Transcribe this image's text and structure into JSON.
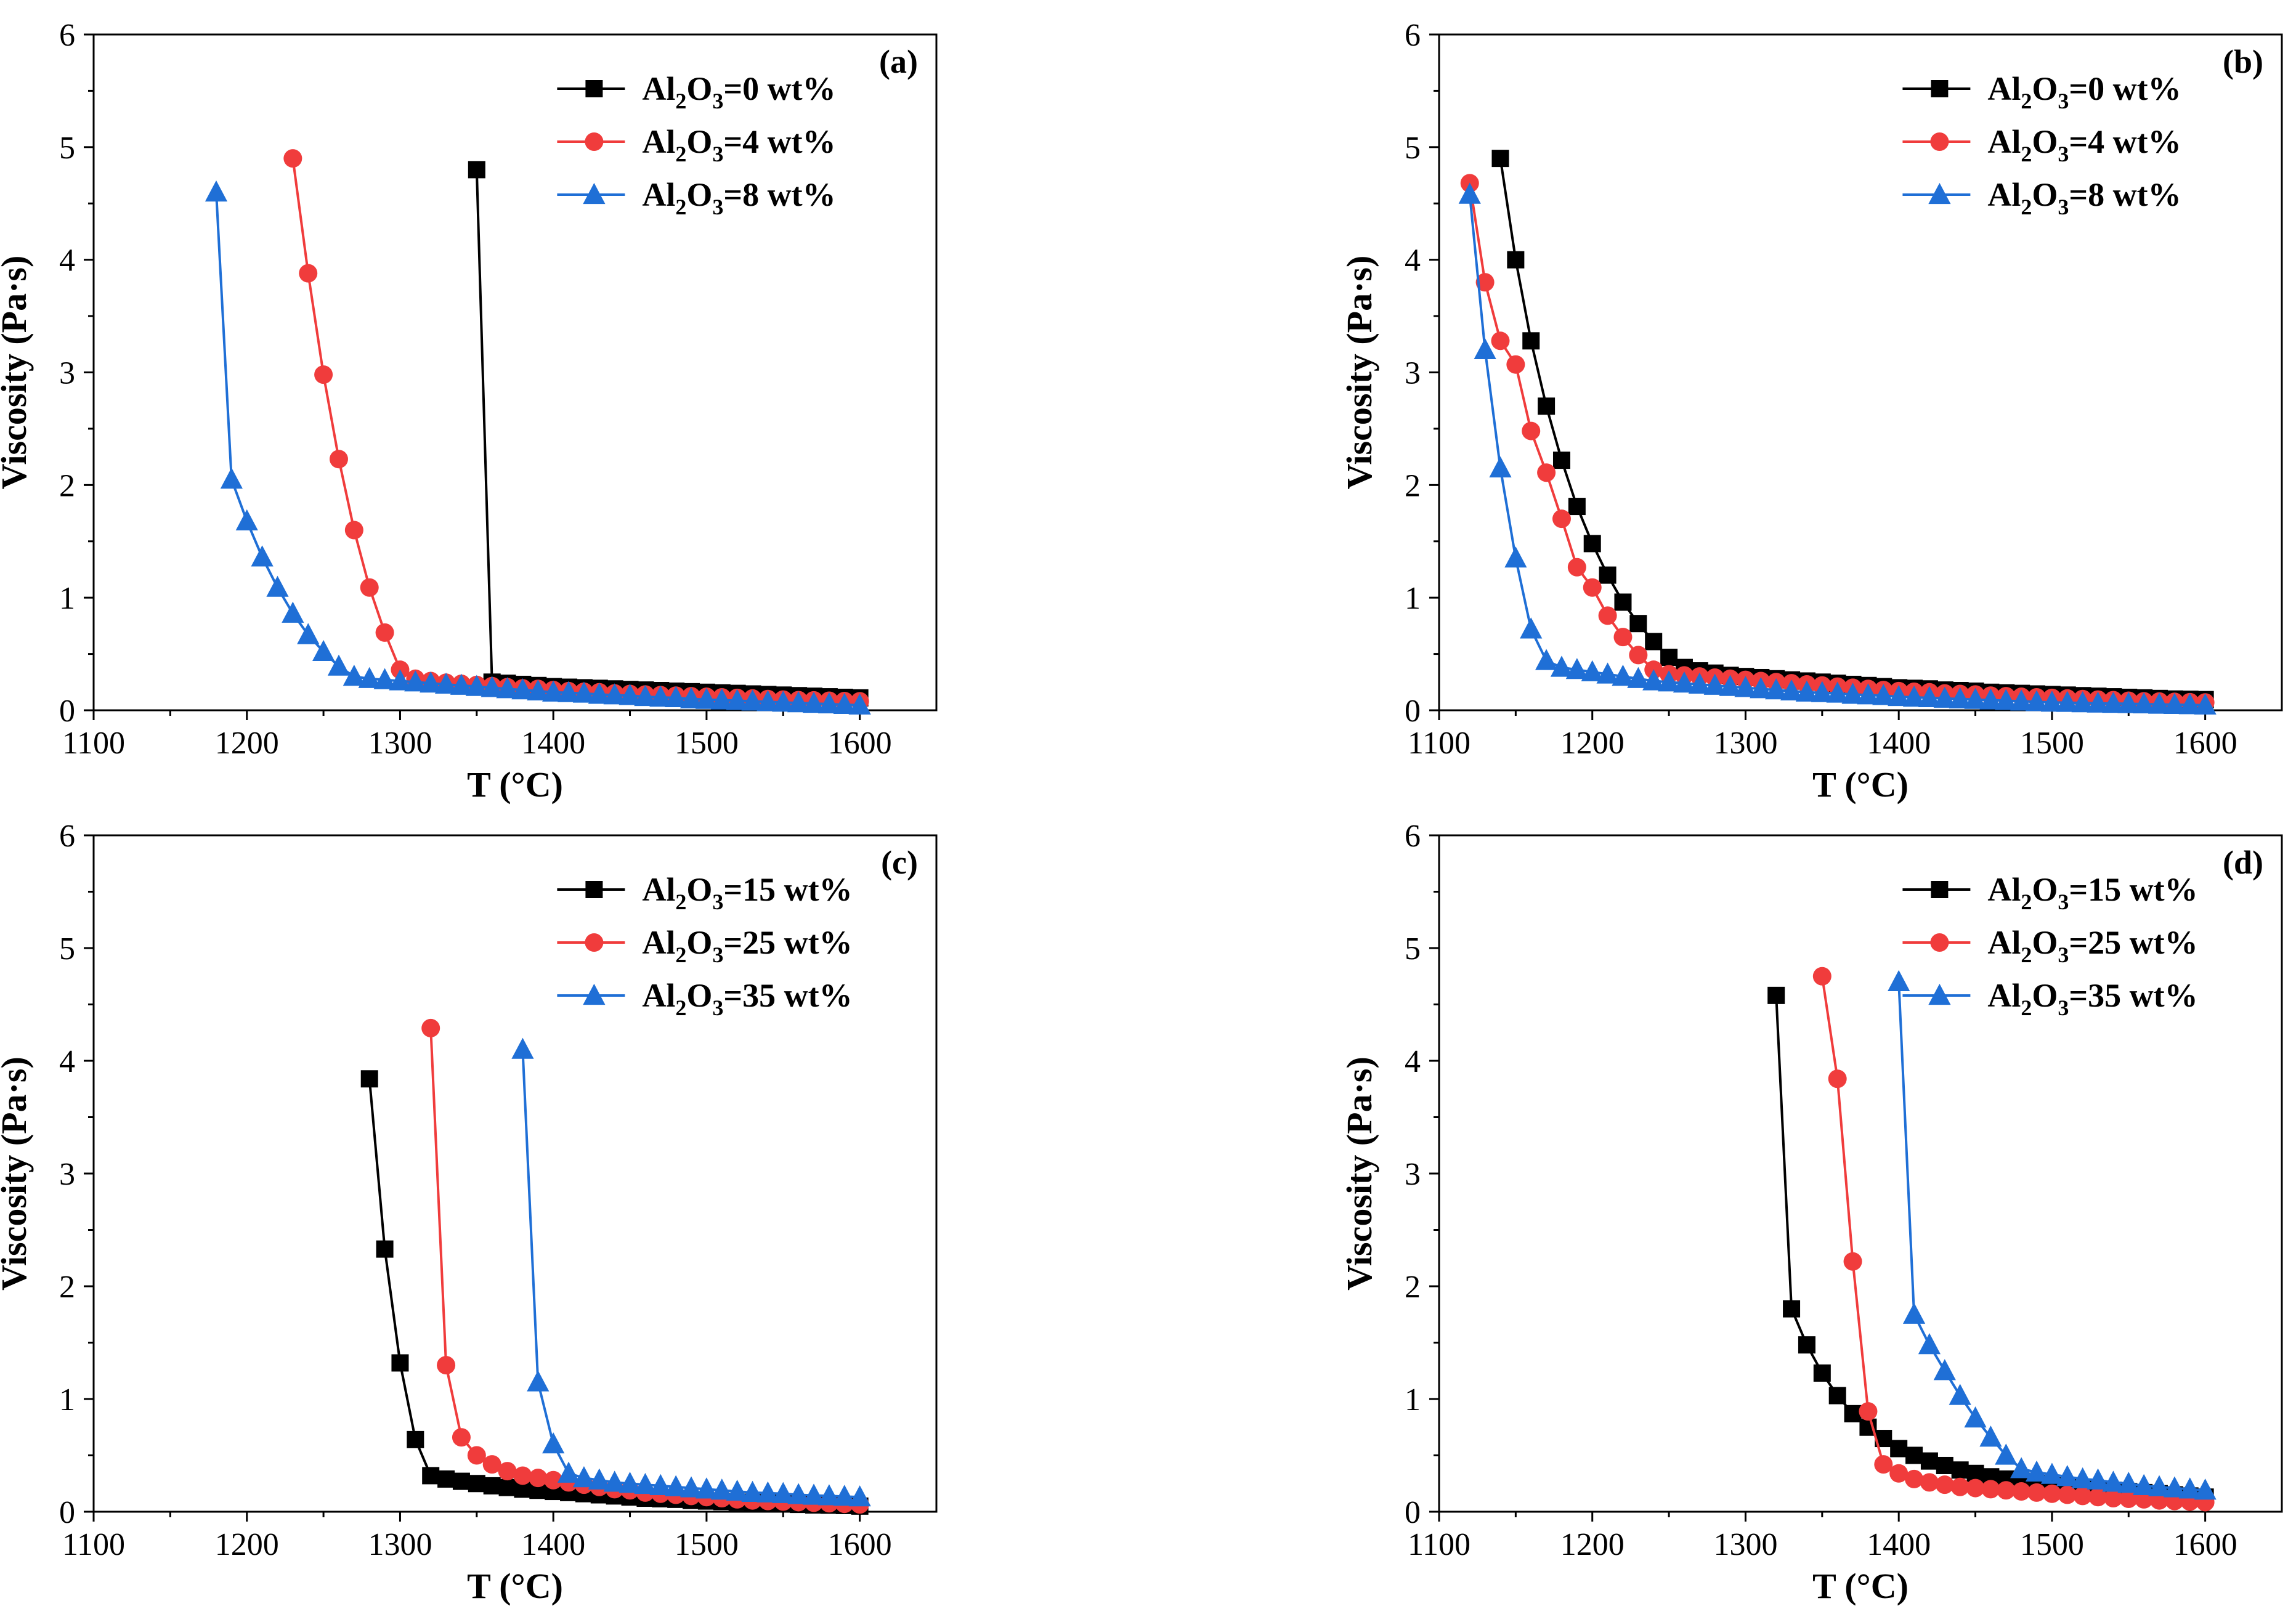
{
  "chart_data": [
    {
      "type": "line",
      "panel_label": "(a)",
      "xlabel": "T (°C)",
      "ylabel": "Viscosity (Pa·s)",
      "xlim": [
        1100,
        1650
      ],
      "ylim": [
        0,
        6
      ],
      "x_ticks": [
        1100,
        1200,
        1300,
        1400,
        1500,
        1600
      ],
      "y_ticks": [
        0,
        1,
        2,
        3,
        4,
        5,
        6
      ],
      "legend_position": "top-right",
      "series": [
        {
          "name": "Al2O3=0 wt%",
          "color": "#000000",
          "marker": "square",
          "x": [
            1350,
            1360,
            1370,
            1380,
            1390,
            1400,
            1410,
            1420,
            1430,
            1440,
            1450,
            1460,
            1470,
            1480,
            1490,
            1500,
            1510,
            1520,
            1530,
            1540,
            1550,
            1560,
            1570,
            1580,
            1590,
            1600
          ],
          "y": [
            4.8,
            0.25,
            0.24,
            0.23,
            0.22,
            0.21,
            0.205,
            0.2,
            0.195,
            0.19,
            0.185,
            0.18,
            0.175,
            0.17,
            0.165,
            0.16,
            0.155,
            0.15,
            0.145,
            0.14,
            0.135,
            0.13,
            0.125,
            0.12,
            0.115,
            0.11
          ]
        },
        {
          "name": "Al2O3=4 wt%",
          "color": "#f03c3c",
          "marker": "circle",
          "x": [
            1230,
            1240,
            1250,
            1260,
            1270,
            1280,
            1290,
            1300,
            1310,
            1320,
            1330,
            1340,
            1350,
            1360,
            1370,
            1380,
            1390,
            1400,
            1410,
            1420,
            1430,
            1440,
            1450,
            1460,
            1470,
            1480,
            1490,
            1500,
            1510,
            1520,
            1530,
            1540,
            1550,
            1560,
            1570,
            1580,
            1590,
            1600
          ],
          "y": [
            4.9,
            3.88,
            2.98,
            2.23,
            1.6,
            1.09,
            0.69,
            0.36,
            0.28,
            0.26,
            0.245,
            0.235,
            0.225,
            0.215,
            0.205,
            0.195,
            0.19,
            0.18,
            0.17,
            0.165,
            0.16,
            0.15,
            0.145,
            0.14,
            0.135,
            0.13,
            0.125,
            0.12,
            0.115,
            0.11,
            0.105,
            0.1,
            0.095,
            0.09,
            0.088,
            0.085,
            0.082,
            0.08
          ]
        },
        {
          "name": "Al2O3=8 wt%",
          "color": "#1f6fd6",
          "marker": "triangle",
          "x": [
            1180,
            1190,
            1200,
            1210,
            1220,
            1230,
            1240,
            1250,
            1260,
            1270,
            1280,
            1290,
            1300,
            1310,
            1320,
            1330,
            1340,
            1350,
            1360,
            1370,
            1380,
            1390,
            1400,
            1410,
            1420,
            1430,
            1440,
            1450,
            1460,
            1470,
            1480,
            1490,
            1500,
            1510,
            1520,
            1530,
            1540,
            1550,
            1560,
            1570,
            1580,
            1590,
            1600
          ],
          "y": [
            4.6,
            2.05,
            1.68,
            1.36,
            1.09,
            0.86,
            0.67,
            0.52,
            0.39,
            0.3,
            0.28,
            0.27,
            0.26,
            0.25,
            0.24,
            0.23,
            0.22,
            0.21,
            0.2,
            0.19,
            0.18,
            0.17,
            0.16,
            0.155,
            0.15,
            0.14,
            0.135,
            0.13,
            0.12,
            0.115,
            0.11,
            0.1,
            0.095,
            0.09,
            0.085,
            0.08,
            0.075,
            0.07,
            0.065,
            0.06,
            0.055,
            0.05,
            0.045
          ]
        }
      ]
    },
    {
      "type": "line",
      "panel_label": "(b)",
      "xlabel": "T (°C)",
      "ylabel": "Viscosity (Pa·s)",
      "xlim": [
        1100,
        1650
      ],
      "ylim": [
        0,
        6
      ],
      "x_ticks": [
        1100,
        1200,
        1300,
        1400,
        1500,
        1600
      ],
      "y_ticks": [
        0,
        1,
        2,
        3,
        4,
        5,
        6
      ],
      "legend_position": "top-right",
      "series": [
        {
          "name": "Al2O3=0 wt%",
          "color": "#000000",
          "marker": "square",
          "x": [
            1140,
            1150,
            1160,
            1170,
            1180,
            1190,
            1200,
            1210,
            1220,
            1230,
            1240,
            1250,
            1260,
            1270,
            1280,
            1290,
            1300,
            1310,
            1320,
            1330,
            1340,
            1350,
            1360,
            1370,
            1380,
            1390,
            1400,
            1410,
            1420,
            1430,
            1440,
            1450,
            1460,
            1470,
            1480,
            1490,
            1500,
            1510,
            1520,
            1530,
            1540,
            1550,
            1560,
            1570,
            1580,
            1590,
            1600
          ],
          "y": [
            4.9,
            4.0,
            3.28,
            2.7,
            2.22,
            1.81,
            1.48,
            1.2,
            0.96,
            0.77,
            0.61,
            0.47,
            0.38,
            0.35,
            0.33,
            0.31,
            0.3,
            0.29,
            0.28,
            0.27,
            0.26,
            0.25,
            0.24,
            0.23,
            0.22,
            0.21,
            0.2,
            0.195,
            0.19,
            0.18,
            0.175,
            0.17,
            0.16,
            0.155,
            0.15,
            0.145,
            0.14,
            0.135,
            0.13,
            0.125,
            0.12,
            0.115,
            0.11,
            0.105,
            0.1,
            0.098,
            0.095
          ]
        },
        {
          "name": "Al2O3=4 wt%",
          "color": "#f03c3c",
          "marker": "circle",
          "x": [
            1120,
            1130,
            1140,
            1150,
            1160,
            1170,
            1180,
            1190,
            1200,
            1210,
            1220,
            1230,
            1240,
            1250,
            1260,
            1270,
            1280,
            1290,
            1300,
            1310,
            1320,
            1330,
            1340,
            1350,
            1360,
            1370,
            1380,
            1390,
            1400,
            1410,
            1420,
            1430,
            1440,
            1450,
            1460,
            1470,
            1480,
            1490,
            1500,
            1510,
            1520,
            1530,
            1540,
            1550,
            1560,
            1570,
            1580,
            1590,
            1600
          ],
          "y": [
            4.68,
            3.8,
            3.28,
            3.07,
            2.48,
            2.11,
            1.7,
            1.27,
            1.09,
            0.84,
            0.65,
            0.49,
            0.36,
            0.32,
            0.31,
            0.3,
            0.29,
            0.28,
            0.27,
            0.26,
            0.25,
            0.24,
            0.23,
            0.22,
            0.21,
            0.2,
            0.19,
            0.18,
            0.17,
            0.165,
            0.16,
            0.15,
            0.145,
            0.14,
            0.13,
            0.125,
            0.12,
            0.115,
            0.11,
            0.105,
            0.1,
            0.095,
            0.09,
            0.085,
            0.08,
            0.078,
            0.075,
            0.072,
            0.07
          ]
        },
        {
          "name": "Al2O3=8 wt%",
          "color": "#1f6fd6",
          "marker": "triangle",
          "x": [
            1120,
            1130,
            1140,
            1150,
            1160,
            1170,
            1180,
            1190,
            1200,
            1210,
            1220,
            1230,
            1240,
            1250,
            1260,
            1270,
            1280,
            1290,
            1300,
            1310,
            1320,
            1330,
            1340,
            1350,
            1360,
            1370,
            1380,
            1390,
            1400,
            1410,
            1420,
            1430,
            1440,
            1450,
            1460,
            1470,
            1480,
            1490,
            1500,
            1510,
            1520,
            1530,
            1540,
            1550,
            1560,
            1570,
            1580,
            1590,
            1600
          ],
          "y": [
            4.58,
            3.2,
            2.15,
            1.35,
            0.72,
            0.44,
            0.38,
            0.36,
            0.34,
            0.32,
            0.3,
            0.28,
            0.26,
            0.25,
            0.24,
            0.23,
            0.22,
            0.21,
            0.2,
            0.19,
            0.18,
            0.17,
            0.16,
            0.155,
            0.15,
            0.14,
            0.135,
            0.13,
            0.12,
            0.115,
            0.11,
            0.105,
            0.1,
            0.095,
            0.09,
            0.085,
            0.08,
            0.075,
            0.07,
            0.068,
            0.065,
            0.062,
            0.06,
            0.058,
            0.055,
            0.052,
            0.05,
            0.048,
            0.045
          ]
        }
      ]
    },
    {
      "type": "line",
      "panel_label": "(c)",
      "xlabel": "T (°C)",
      "ylabel": "Viscosity (Pa·s)",
      "xlim": [
        1100,
        1650
      ],
      "ylim": [
        0,
        6
      ],
      "x_ticks": [
        1100,
        1200,
        1300,
        1400,
        1500,
        1600
      ],
      "y_ticks": [
        0,
        1,
        2,
        3,
        4,
        5,
        6
      ],
      "legend_position": "top-right",
      "series": [
        {
          "name": "Al2O3=15 wt%",
          "color": "#000000",
          "marker": "square",
          "x": [
            1280,
            1290,
            1300,
            1310,
            1320,
            1330,
            1340,
            1350,
            1360,
            1370,
            1380,
            1390,
            1400,
            1410,
            1420,
            1430,
            1440,
            1450,
            1460,
            1470,
            1480,
            1490,
            1500,
            1510,
            1520,
            1530,
            1540,
            1550,
            1560,
            1570,
            1580,
            1590,
            1600
          ],
          "y": [
            3.84,
            2.33,
            1.32,
            0.64,
            0.32,
            0.29,
            0.27,
            0.25,
            0.23,
            0.215,
            0.2,
            0.19,
            0.18,
            0.17,
            0.16,
            0.15,
            0.14,
            0.13,
            0.12,
            0.115,
            0.11,
            0.1,
            0.095,
            0.09,
            0.085,
            0.08,
            0.075,
            0.07,
            0.065,
            0.06,
            0.058,
            0.055,
            0.05
          ]
        },
        {
          "name": "Al2O3=25 wt%",
          "color": "#f03c3c",
          "marker": "circle",
          "x": [
            1320,
            1330,
            1340,
            1350,
            1360,
            1370,
            1380,
            1390,
            1400,
            1410,
            1420,
            1430,
            1440,
            1450,
            1460,
            1470,
            1480,
            1490,
            1500,
            1510,
            1520,
            1530,
            1540,
            1550,
            1560,
            1570,
            1580,
            1590,
            1600
          ],
          "y": [
            4.29,
            1.3,
            0.66,
            0.5,
            0.42,
            0.36,
            0.32,
            0.3,
            0.28,
            0.26,
            0.24,
            0.22,
            0.2,
            0.19,
            0.17,
            0.16,
            0.15,
            0.14,
            0.13,
            0.12,
            0.11,
            0.1,
            0.095,
            0.09,
            0.085,
            0.08,
            0.075,
            0.07,
            0.065
          ]
        },
        {
          "name": "Al2O3=35 wt%",
          "color": "#1f6fd6",
          "marker": "triangle",
          "x": [
            1380,
            1390,
            1400,
            1410,
            1420,
            1430,
            1440,
            1450,
            1460,
            1470,
            1480,
            1490,
            1500,
            1510,
            1520,
            1530,
            1540,
            1550,
            1560,
            1570,
            1580,
            1590,
            1600
          ],
          "y": [
            4.1,
            1.15,
            0.6,
            0.34,
            0.3,
            0.28,
            0.26,
            0.25,
            0.24,
            0.23,
            0.22,
            0.21,
            0.2,
            0.19,
            0.18,
            0.17,
            0.165,
            0.16,
            0.15,
            0.145,
            0.14,
            0.135,
            0.13
          ]
        }
      ]
    },
    {
      "type": "line",
      "panel_label": "(d)",
      "xlabel": "T (°C)",
      "ylabel": "Viscosity (Pa·s)",
      "xlim": [
        1100,
        1650
      ],
      "ylim": [
        0,
        6
      ],
      "x_ticks": [
        1100,
        1200,
        1300,
        1400,
        1500,
        1600
      ],
      "y_ticks": [
        0,
        1,
        2,
        3,
        4,
        5,
        6
      ],
      "legend_position": "top-right",
      "series": [
        {
          "name": "Al2O3=15 wt%",
          "color": "#000000",
          "marker": "square",
          "x": [
            1320,
            1330,
            1340,
            1350,
            1360,
            1370,
            1380,
            1390,
            1400,
            1410,
            1420,
            1430,
            1440,
            1450,
            1460,
            1470,
            1480,
            1490,
            1500,
            1510,
            1520,
            1530,
            1540,
            1550,
            1560,
            1570,
            1580,
            1590,
            1600
          ],
          "y": [
            4.58,
            1.8,
            1.48,
            1.23,
            1.03,
            0.87,
            0.75,
            0.65,
            0.56,
            0.5,
            0.45,
            0.41,
            0.37,
            0.34,
            0.31,
            0.29,
            0.27,
            0.25,
            0.23,
            0.22,
            0.21,
            0.2,
            0.19,
            0.18,
            0.17,
            0.16,
            0.15,
            0.14,
            0.13
          ]
        },
        {
          "name": "Al2O3=25 wt%",
          "color": "#f03c3c",
          "marker": "circle",
          "x": [
            1350,
            1360,
            1370,
            1380,
            1390,
            1400,
            1410,
            1420,
            1430,
            1440,
            1450,
            1460,
            1470,
            1480,
            1490,
            1500,
            1510,
            1520,
            1530,
            1540,
            1550,
            1560,
            1570,
            1580,
            1590,
            1600
          ],
          "y": [
            4.75,
            3.84,
            2.22,
            0.89,
            0.42,
            0.34,
            0.29,
            0.26,
            0.24,
            0.22,
            0.21,
            0.2,
            0.19,
            0.18,
            0.17,
            0.16,
            0.15,
            0.14,
            0.13,
            0.12,
            0.115,
            0.11,
            0.1,
            0.095,
            0.09,
            0.085
          ]
        },
        {
          "name": "Al2O3=35 wt%",
          "color": "#1f6fd6",
          "marker": "triangle",
          "x": [
            1400,
            1410,
            1420,
            1430,
            1440,
            1450,
            1460,
            1470,
            1480,
            1490,
            1500,
            1510,
            1520,
            1530,
            1540,
            1550,
            1560,
            1570,
            1580,
            1590,
            1600
          ],
          "y": [
            4.7,
            1.75,
            1.48,
            1.25,
            1.03,
            0.83,
            0.66,
            0.5,
            0.38,
            0.35,
            0.33,
            0.31,
            0.29,
            0.28,
            0.26,
            0.25,
            0.23,
            0.22,
            0.21,
            0.2,
            0.19
          ]
        }
      ]
    }
  ]
}
